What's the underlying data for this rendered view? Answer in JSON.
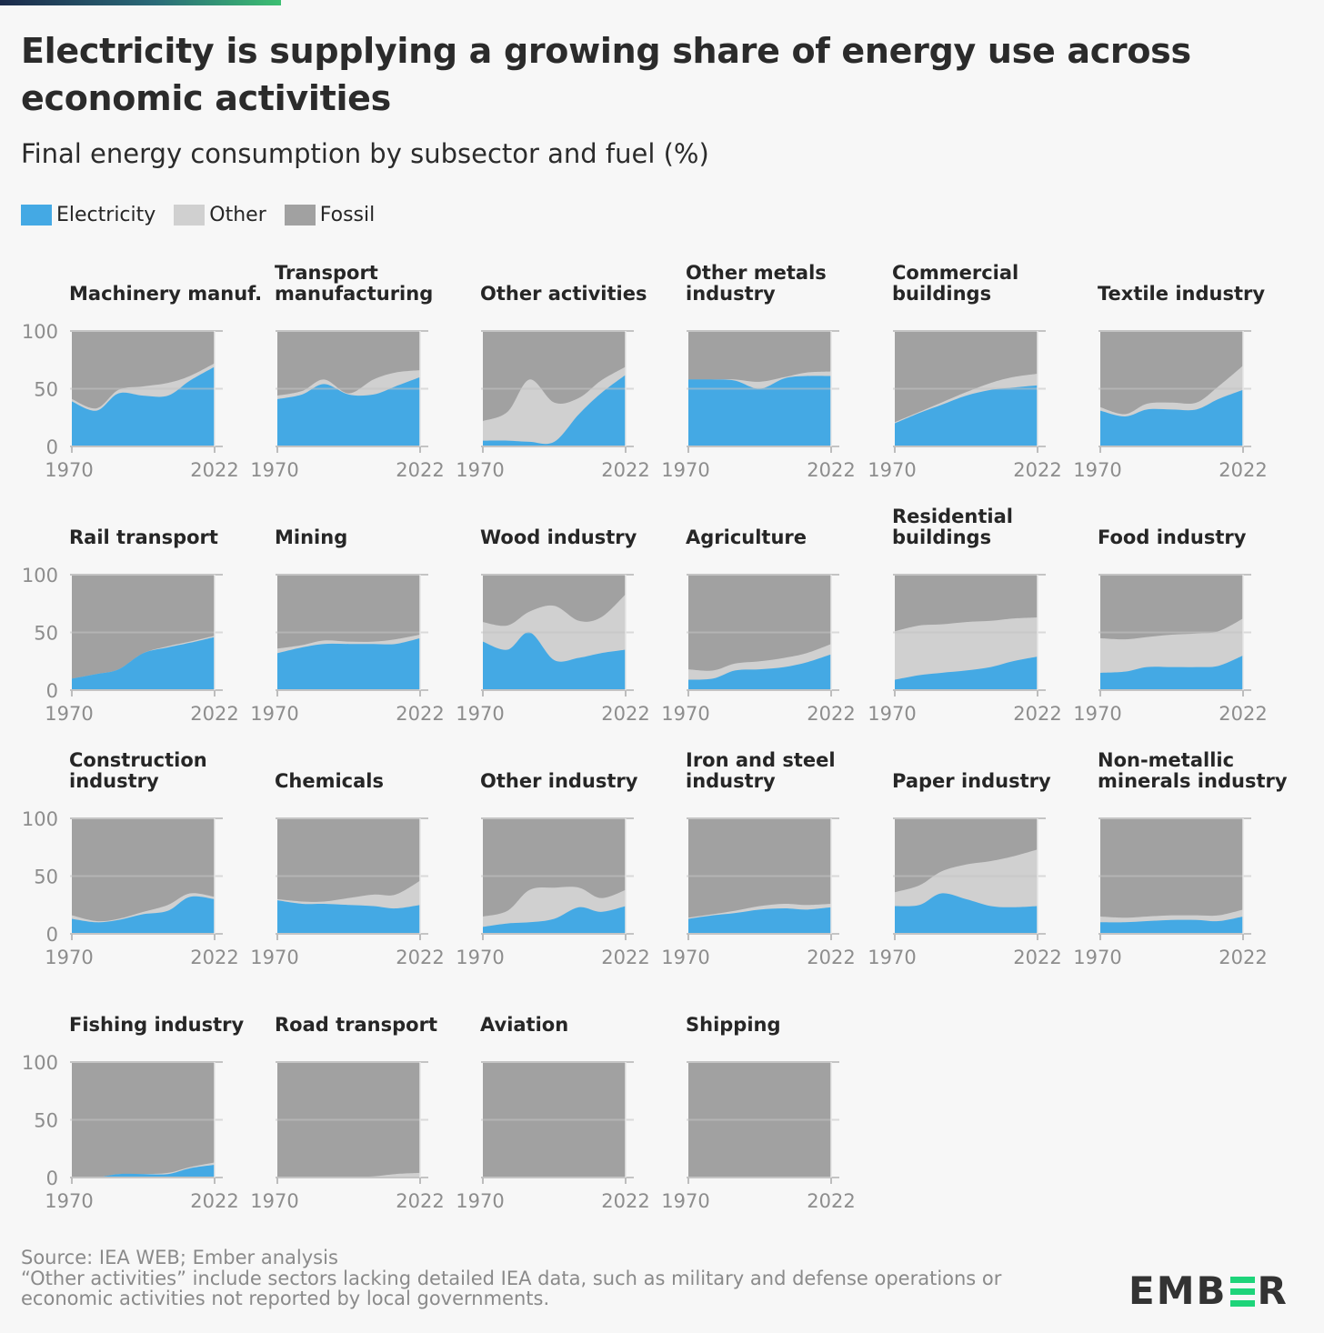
{
  "header": {
    "title": "Electricity is supplying a growing share of energy use across economic activities",
    "subtitle": "Final energy consumption by subsector and fuel (%)"
  },
  "legend": [
    {
      "label": "Electricity",
      "color": "#44a9e4"
    },
    {
      "label": "Other",
      "color": "#d0d0d0"
    },
    {
      "label": "Fossil",
      "color": "#a1a1a1"
    }
  ],
  "footer": {
    "source": "Source: IEA WEB; Ember analysis",
    "note": "“Other activities” include sectors lacking detailed IEA data, such as military and defense operations or economic activities not reported by local governments.",
    "logo": {
      "left": "EMB",
      "right": "R",
      "accent_color": "#1ed47a"
    }
  },
  "chart_data": {
    "type": "area",
    "stacked": true,
    "layout": "small-multiples",
    "x_tick_labels": [
      "1970",
      "2022"
    ],
    "y_tick_labels": [
      "0",
      "50",
      "100"
    ],
    "ylim": [
      0,
      100
    ],
    "x": [
      1970,
      1979,
      1987,
      1996,
      2005,
      2013,
      2022
    ],
    "series_order": [
      "Electricity",
      "Other",
      "Fossil"
    ],
    "colors": {
      "Electricity": "#44a9e4",
      "Other": "#d0d0d0",
      "Fossil": "#a1a1a1"
    },
    "panels": [
      {
        "title": [
          "Machinery manuf."
        ],
        "electricity": [
          39,
          31,
          46,
          44,
          44,
          57,
          69
        ],
        "electricity_plus_other": [
          41,
          33,
          49,
          52,
          55,
          61,
          72
        ]
      },
      {
        "title": [
          "Transport",
          "manufacturing"
        ],
        "electricity": [
          41,
          45,
          54,
          45,
          45,
          52,
          60
        ],
        "electricity_plus_other": [
          44,
          48,
          58,
          46,
          58,
          64,
          66
        ]
      },
      {
        "title": [
          "Other activities"
        ],
        "electricity": [
          5,
          5,
          4,
          4,
          28,
          46,
          62
        ],
        "electricity_plus_other": [
          22,
          30,
          58,
          38,
          42,
          57,
          69
        ]
      },
      {
        "title": [
          "Other metals",
          "industry"
        ],
        "electricity": [
          58,
          58,
          57,
          50,
          59,
          61,
          61
        ],
        "electricity_plus_other": [
          58,
          58,
          58,
          56,
          60,
          64,
          65
        ]
      },
      {
        "title": [
          "Commercial",
          "buildings"
        ],
        "electricity": [
          20,
          29,
          36,
          44,
          49,
          51,
          53
        ],
        "electricity_plus_other": [
          21,
          30,
          38,
          47,
          55,
          60,
          63
        ]
      },
      {
        "title": [
          "Textile industry"
        ],
        "electricity": [
          31,
          26,
          32,
          32,
          32,
          41,
          49
        ],
        "electricity_plus_other": [
          34,
          28,
          37,
          38,
          38,
          52,
          70
        ]
      },
      {
        "title": [
          "Rail transport"
        ],
        "electricity": [
          10,
          14,
          18,
          32,
          37,
          41,
          46
        ],
        "electricity_plus_other": [
          10,
          14,
          18,
          32,
          38,
          42,
          47
        ]
      },
      {
        "title": [
          "Mining"
        ],
        "electricity": [
          32,
          37,
          40,
          40,
          40,
          40,
          45
        ],
        "electricity_plus_other": [
          36,
          39,
          43,
          42,
          42,
          44,
          48
        ]
      },
      {
        "title": [
          "Wood industry"
        ],
        "electricity": [
          42,
          35,
          50,
          26,
          28,
          32,
          35
        ],
        "electricity_plus_other": [
          59,
          56,
          68,
          73,
          60,
          63,
          83
        ]
      },
      {
        "title": [
          "Agriculture"
        ],
        "electricity": [
          9,
          10,
          17,
          18,
          20,
          24,
          31
        ],
        "electricity_plus_other": [
          18,
          17,
          23,
          25,
          28,
          32,
          40
        ]
      },
      {
        "title": [
          "Residential",
          "buildings"
        ],
        "electricity": [
          9,
          13,
          15,
          17,
          20,
          25,
          29
        ],
        "electricity_plus_other": [
          51,
          56,
          57,
          59,
          60,
          62,
          63
        ]
      },
      {
        "title": [
          "Food industry"
        ],
        "electricity": [
          15,
          16,
          20,
          20,
          20,
          21,
          30
        ],
        "electricity_plus_other": [
          45,
          44,
          46,
          48,
          49,
          51,
          62
        ]
      },
      {
        "title": [
          "Construction",
          "industry"
        ],
        "electricity": [
          13,
          10,
          12,
          17,
          20,
          32,
          30
        ],
        "electricity_plus_other": [
          16,
          11,
          13,
          19,
          25,
          35,
          32
        ]
      },
      {
        "title": [
          "Chemicals"
        ],
        "electricity": [
          29,
          26,
          26,
          25,
          24,
          22,
          25
        ],
        "electricity_plus_other": [
          30,
          28,
          28,
          31,
          34,
          34,
          46
        ]
      },
      {
        "title": [
          "Other industry"
        ],
        "electricity": [
          6,
          9,
          10,
          13,
          23,
          19,
          24
        ],
        "electricity_plus_other": [
          15,
          20,
          38,
          40,
          40,
          31,
          38
        ]
      },
      {
        "title": [
          "Iron and steel",
          "industry"
        ],
        "electricity": [
          13,
          16,
          18,
          21,
          22,
          21,
          23
        ],
        "electricity_plus_other": [
          14,
          17,
          20,
          24,
          26,
          25,
          26
        ]
      },
      {
        "title": [
          "Paper industry"
        ],
        "electricity": [
          24,
          25,
          35,
          30,
          24,
          23,
          24
        ],
        "electricity_plus_other": [
          36,
          42,
          54,
          60,
          63,
          67,
          73
        ]
      },
      {
        "title": [
          "Non-metallic",
          "minerals industry"
        ],
        "electricity": [
          10,
          10,
          11,
          12,
          12,
          11,
          15
        ],
        "electricity_plus_other": [
          15,
          14,
          15,
          16,
          16,
          16,
          21
        ]
      },
      {
        "title": [
          "Fishing industry"
        ],
        "electricity": [
          0,
          0,
          3,
          3,
          3,
          8,
          11
        ],
        "electricity_plus_other": [
          0,
          0,
          3,
          3,
          4,
          9,
          13
        ]
      },
      {
        "title": [
          "Road transport"
        ],
        "electricity": [
          0,
          0,
          0,
          0,
          0,
          0,
          0
        ],
        "electricity_plus_other": [
          0,
          0,
          0,
          0,
          1,
          3,
          4
        ]
      },
      {
        "title": [
          "Aviation"
        ],
        "electricity": [
          0,
          0,
          0,
          0,
          0,
          0,
          0
        ],
        "electricity_plus_other": [
          0,
          0,
          0,
          0,
          0,
          0,
          0
        ]
      },
      {
        "title": [
          "Shipping"
        ],
        "electricity": [
          0,
          0,
          0,
          0,
          0,
          0,
          0
        ],
        "electricity_plus_other": [
          0,
          0,
          0,
          0,
          0,
          0,
          0
        ]
      }
    ]
  }
}
